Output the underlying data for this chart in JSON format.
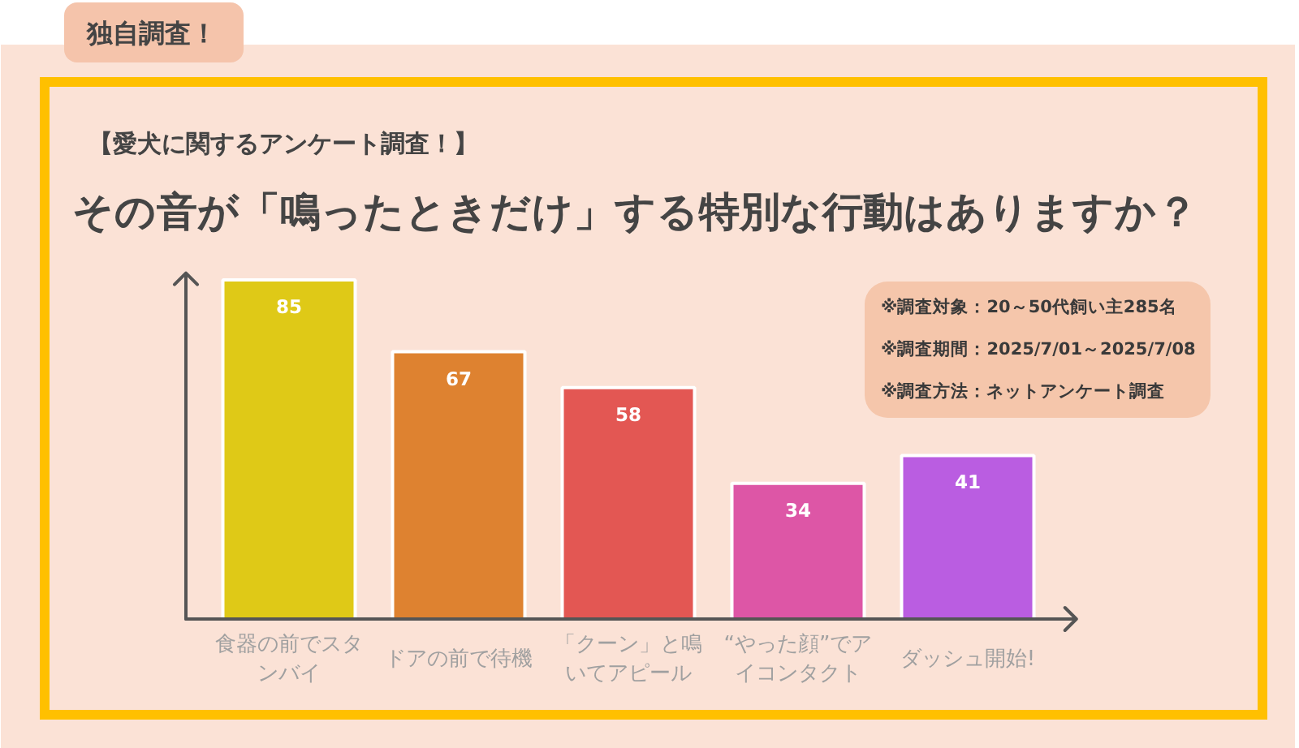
{
  "chart_data": {
    "type": "bar",
    "title": "その音が「鳴ったときだけ」する特別な行動はありますか？",
    "subtitle": "【愛犬に関するアンケート調査！】",
    "categories": [
      "食器の前でスタンバイ",
      "ドアの前で待機",
      "「クーン」と鳴いてアピール",
      "“やった顔”でアイコンタクト",
      "ダッシュ開始!"
    ],
    "values": [
      85,
      67,
      58,
      34,
      41
    ],
    "colors": [
      "#dfc917",
      "#de8230",
      "#e35753",
      "#dd56a6",
      "#ba5de1"
    ],
    "data_labels": true,
    "annotations": [
      "独自調査！",
      "※調査対象：20～50代飼い主285名",
      "※調査期間：2025/7/01～2025/7/08",
      "※調査方法：ネットアンケート調査"
    ]
  }
}
